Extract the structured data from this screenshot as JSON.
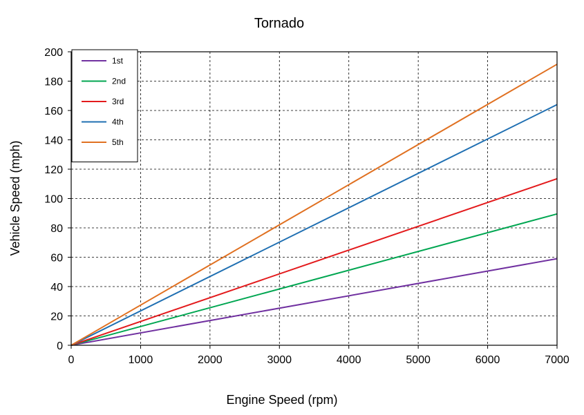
{
  "chart_data": {
    "type": "line",
    "title": "Tornado",
    "xlabel": "Engine Speed (rpm)",
    "ylabel": "Vehicle Speed (mph)",
    "xlim": [
      0,
      7000
    ],
    "ylim": [
      0,
      200
    ],
    "xticks": [
      0,
      1000,
      2000,
      3000,
      4000,
      5000,
      6000,
      7000
    ],
    "yticks": [
      0,
      20,
      40,
      60,
      80,
      100,
      120,
      140,
      160,
      180,
      200
    ],
    "grid": true,
    "grid_style": "dashed",
    "legend_position": "top-left",
    "series": [
      {
        "name": "1st",
        "color": "#7030a0",
        "x": [
          0,
          7000
        ],
        "y": [
          0,
          59
        ]
      },
      {
        "name": "2nd",
        "color": "#00a651",
        "x": [
          0,
          7000
        ],
        "y": [
          0,
          89.5
        ]
      },
      {
        "name": "3rd",
        "color": "#e31a1c",
        "x": [
          0,
          7000
        ],
        "y": [
          0,
          113.5
        ]
      },
      {
        "name": "4th",
        "color": "#1f6fb2",
        "x": [
          0,
          7000
        ],
        "y": [
          0,
          164
        ]
      },
      {
        "name": "5th",
        "color": "#e07020",
        "x": [
          0,
          7000
        ],
        "y": [
          0,
          191.5
        ]
      }
    ]
  }
}
